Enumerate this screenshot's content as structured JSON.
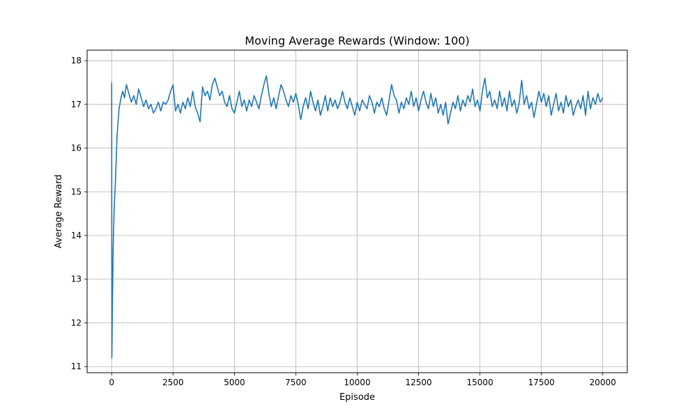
{
  "chart_data": {
    "type": "line",
    "title": "Moving Average Rewards (Window: 100)",
    "xlabel": "Episode",
    "ylabel": "Average Reward",
    "xlim": [
      -1000,
      21000
    ],
    "ylim": [
      10.86,
      18.24
    ],
    "x_ticks": [
      0,
      2500,
      5000,
      7500,
      10000,
      12500,
      15000,
      17500,
      20000
    ],
    "y_ticks": [
      11,
      12,
      13,
      14,
      15,
      16,
      17,
      18
    ],
    "grid": true,
    "legend": "none",
    "series": [
      {
        "color": "#1f77b4",
        "points": [
          [
            0,
            17.5
          ],
          [
            8,
            11.2
          ],
          [
            30,
            12.4
          ],
          [
            60,
            13.7
          ],
          [
            100,
            14.6
          ],
          [
            150,
            15.2
          ],
          [
            220,
            16.3
          ],
          [
            300,
            16.9
          ],
          [
            380,
            17.15
          ],
          [
            450,
            17.3
          ],
          [
            520,
            17.15
          ],
          [
            600,
            17.45
          ],
          [
            700,
            17.25
          ],
          [
            800,
            17.05
          ],
          [
            900,
            17.2
          ],
          [
            1000,
            17.0
          ],
          [
            1100,
            17.35
          ],
          [
            1200,
            17.15
          ],
          [
            1300,
            16.95
          ],
          [
            1400,
            17.1
          ],
          [
            1500,
            16.9
          ],
          [
            1600,
            17.0
          ],
          [
            1700,
            16.8
          ],
          [
            1800,
            16.9
          ],
          [
            1900,
            17.05
          ],
          [
            2000,
            16.85
          ],
          [
            2100,
            17.05
          ],
          [
            2200,
            17.0
          ],
          [
            2300,
            17.1
          ],
          [
            2400,
            17.3
          ],
          [
            2500,
            17.45
          ],
          [
            2600,
            16.85
          ],
          [
            2700,
            17.0
          ],
          [
            2800,
            16.8
          ],
          [
            2900,
            17.05
          ],
          [
            3000,
            16.9
          ],
          [
            3100,
            17.15
          ],
          [
            3200,
            16.95
          ],
          [
            3300,
            17.3
          ],
          [
            3400,
            16.95
          ],
          [
            3500,
            16.8
          ],
          [
            3600,
            16.6
          ],
          [
            3700,
            17.4
          ],
          [
            3800,
            17.2
          ],
          [
            3900,
            17.3
          ],
          [
            4000,
            17.1
          ],
          [
            4100,
            17.45
          ],
          [
            4200,
            17.6
          ],
          [
            4300,
            17.4
          ],
          [
            4400,
            17.2
          ],
          [
            4500,
            17.3
          ],
          [
            4600,
            17.05
          ],
          [
            4700,
            16.95
          ],
          [
            4800,
            17.2
          ],
          [
            4900,
            16.9
          ],
          [
            5000,
            16.8
          ],
          [
            5100,
            17.05
          ],
          [
            5200,
            17.3
          ],
          [
            5300,
            16.95
          ],
          [
            5400,
            17.1
          ],
          [
            5500,
            16.85
          ],
          [
            5600,
            17.1
          ],
          [
            5700,
            16.95
          ],
          [
            5800,
            17.2
          ],
          [
            5900,
            17.05
          ],
          [
            6000,
            16.9
          ],
          [
            6100,
            17.2
          ],
          [
            6200,
            17.45
          ],
          [
            6300,
            17.65
          ],
          [
            6400,
            17.25
          ],
          [
            6500,
            16.95
          ],
          [
            6600,
            17.15
          ],
          [
            6700,
            16.9
          ],
          [
            6800,
            17.2
          ],
          [
            6900,
            17.45
          ],
          [
            7000,
            17.3
          ],
          [
            7100,
            17.1
          ],
          [
            7200,
            16.95
          ],
          [
            7300,
            17.2
          ],
          [
            7400,
            17.05
          ],
          [
            7500,
            17.25
          ],
          [
            7600,
            17.0
          ],
          [
            7700,
            16.65
          ],
          [
            7800,
            16.95
          ],
          [
            7900,
            17.15
          ],
          [
            8000,
            16.9
          ],
          [
            8100,
            17.3
          ],
          [
            8200,
            17.05
          ],
          [
            8300,
            16.85
          ],
          [
            8400,
            17.1
          ],
          [
            8500,
            16.75
          ],
          [
            8600,
            16.95
          ],
          [
            8700,
            17.2
          ],
          [
            8800,
            16.85
          ],
          [
            8900,
            17.15
          ],
          [
            9000,
            16.95
          ],
          [
            9100,
            17.1
          ],
          [
            9200,
            16.9
          ],
          [
            9300,
            17.05
          ],
          [
            9400,
            17.3
          ],
          [
            9500,
            17.05
          ],
          [
            9600,
            16.9
          ],
          [
            9700,
            17.15
          ],
          [
            9800,
            16.95
          ],
          [
            9900,
            16.75
          ],
          [
            10000,
            17.05
          ],
          [
            10100,
            16.85
          ],
          [
            10200,
            17.1
          ],
          [
            10300,
            17.0
          ],
          [
            10400,
            16.9
          ],
          [
            10500,
            17.2
          ],
          [
            10600,
            17.05
          ],
          [
            10700,
            16.8
          ],
          [
            10800,
            17.05
          ],
          [
            10900,
            16.95
          ],
          [
            11000,
            17.15
          ],
          [
            11100,
            16.9
          ],
          [
            11200,
            16.75
          ],
          [
            11300,
            17.1
          ],
          [
            11400,
            17.45
          ],
          [
            11500,
            17.2
          ],
          [
            11600,
            17.1
          ],
          [
            11700,
            16.8
          ],
          [
            11800,
            17.05
          ],
          [
            11900,
            16.9
          ],
          [
            12000,
            17.15
          ],
          [
            12100,
            17.0
          ],
          [
            12200,
            17.3
          ],
          [
            12300,
            16.95
          ],
          [
            12400,
            17.15
          ],
          [
            12500,
            16.85
          ],
          [
            12600,
            17.1
          ],
          [
            12700,
            17.3
          ],
          [
            12800,
            17.05
          ],
          [
            12900,
            16.9
          ],
          [
            13000,
            17.25
          ],
          [
            13100,
            16.95
          ],
          [
            13200,
            17.15
          ],
          [
            13300,
            16.8
          ],
          [
            13400,
            17.0
          ],
          [
            13500,
            16.75
          ],
          [
            13600,
            17.05
          ],
          [
            13700,
            16.55
          ],
          [
            13800,
            16.8
          ],
          [
            13900,
            17.05
          ],
          [
            14000,
            16.9
          ],
          [
            14100,
            17.2
          ],
          [
            14200,
            16.85
          ],
          [
            14300,
            17.1
          ],
          [
            14400,
            16.95
          ],
          [
            14500,
            17.2
          ],
          [
            14600,
            17.05
          ],
          [
            14700,
            17.35
          ],
          [
            14800,
            16.95
          ],
          [
            14900,
            17.1
          ],
          [
            15000,
            16.85
          ],
          [
            15100,
            17.3
          ],
          [
            15200,
            17.6
          ],
          [
            15300,
            17.15
          ],
          [
            15400,
            17.3
          ],
          [
            15500,
            16.95
          ],
          [
            15600,
            17.1
          ],
          [
            15700,
            16.9
          ],
          [
            15800,
            17.3
          ],
          [
            15900,
            16.95
          ],
          [
            16000,
            17.15
          ],
          [
            16100,
            16.85
          ],
          [
            16200,
            17.3
          ],
          [
            16300,
            16.95
          ],
          [
            16400,
            17.1
          ],
          [
            16500,
            16.8
          ],
          [
            16600,
            17.05
          ],
          [
            16700,
            17.55
          ],
          [
            16800,
            17.0
          ],
          [
            16900,
            17.2
          ],
          [
            17000,
            16.9
          ],
          [
            17100,
            17.05
          ],
          [
            17200,
            16.7
          ],
          [
            17300,
            17.0
          ],
          [
            17400,
            17.3
          ],
          [
            17500,
            17.05
          ],
          [
            17600,
            17.25
          ],
          [
            17700,
            16.95
          ],
          [
            17800,
            17.2
          ],
          [
            17900,
            16.75
          ],
          [
            18000,
            17.0
          ],
          [
            18100,
            17.25
          ],
          [
            18200,
            16.85
          ],
          [
            18300,
            17.05
          ],
          [
            18400,
            16.8
          ],
          [
            18500,
            17.2
          ],
          [
            18600,
            16.95
          ],
          [
            18700,
            17.1
          ],
          [
            18800,
            16.75
          ],
          [
            18900,
            16.95
          ],
          [
            19000,
            17.1
          ],
          [
            19100,
            16.9
          ],
          [
            19200,
            17.2
          ],
          [
            19300,
            16.75
          ],
          [
            19400,
            17.3
          ],
          [
            19500,
            16.9
          ],
          [
            19600,
            17.15
          ],
          [
            19700,
            17.0
          ],
          [
            19800,
            17.25
          ],
          [
            19900,
            17.05
          ],
          [
            20000,
            17.15
          ]
        ]
      }
    ]
  }
}
